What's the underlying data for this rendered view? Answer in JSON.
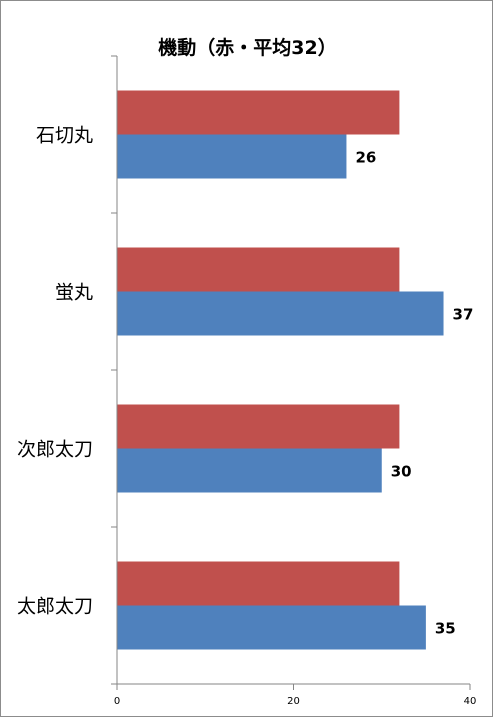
{
  "chart_data": {
    "type": "bar",
    "orientation": "horizontal",
    "title": "機動（赤・平均32）",
    "categories": [
      "石切丸",
      "蛍丸",
      "次郎太刀",
      "太郎太刀"
    ],
    "series": [
      {
        "color": "#c0504d",
        "values": [
          32,
          32,
          32,
          32
        ]
      },
      {
        "color": "#4f81bd",
        "values": [
          26,
          37,
          30,
          35
        ],
        "data_labels": [
          "26",
          "37",
          "30",
          "35"
        ]
      }
    ],
    "xlim": [
      0,
      40
    ],
    "xticks": [
      "0",
      "20",
      "40"
    ],
    "grid": false,
    "legend": "none"
  }
}
